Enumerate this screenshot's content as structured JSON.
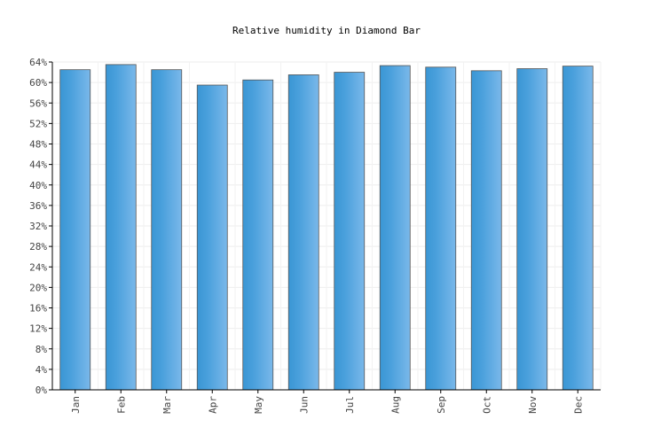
{
  "chart_data": {
    "type": "bar",
    "title": "Relative humidity in Diamond Bar",
    "xlabel": "",
    "ylabel": "",
    "categories": [
      "Jan",
      "Feb",
      "Mar",
      "Apr",
      "May",
      "Jun",
      "Jul",
      "Aug",
      "Sep",
      "Oct",
      "Nov",
      "Dec"
    ],
    "values": [
      62.5,
      63.5,
      62.5,
      59.5,
      60.5,
      61.5,
      62,
      63.3,
      63,
      62.3,
      62.7,
      63.2
    ],
    "value_unit": "%",
    "ylim": [
      0,
      64
    ],
    "yticks": [
      "0%",
      "4%",
      "8%",
      "12%",
      "16%",
      "20%",
      "24%",
      "28%",
      "32%",
      "36%",
      "40%",
      "44%",
      "48%",
      "52%",
      "56%",
      "60%",
      "64%"
    ],
    "grid": true,
    "bar_color": "#4a9fdc"
  }
}
